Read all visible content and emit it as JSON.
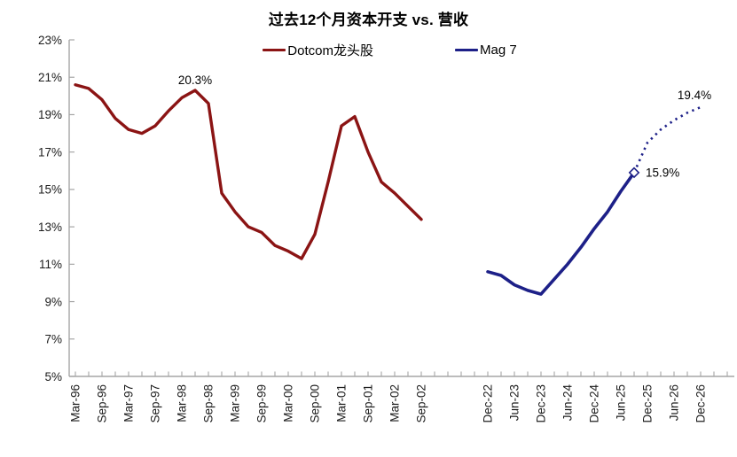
{
  "title": "过去12个月资本开支 vs. 营收",
  "legend": {
    "items": [
      {
        "label": "Dotcom龙头股",
        "color": "#8B1414"
      },
      {
        "label": "Mag 7",
        "color": "#1D2088"
      }
    ]
  },
  "chart_data": {
    "type": "line",
    "title": "过去12个月资本开支 vs. 营收",
    "y_axis": {
      "min": 5,
      "max": 23,
      "step": 2,
      "unit": "%",
      "tick_labels": [
        "5%",
        "7%",
        "9%",
        "11%",
        "13%",
        "15%",
        "17%",
        "19%",
        "21%",
        "23%"
      ]
    },
    "x_axis": {
      "left_tick_labels": [
        "Mar-96",
        "Sep-96",
        "Mar-97",
        "Sep-97",
        "Mar-98",
        "Sep-98",
        "Mar-99",
        "Sep-99",
        "Mar-00",
        "Sep-00",
        "Mar-01",
        "Sep-01",
        "Mar-02",
        "Sep-02"
      ],
      "right_tick_labels": [
        "Dec-22",
        "Jun-23",
        "Dec-23",
        "Jun-24",
        "Dec-24",
        "Jun-25",
        "Dec-25",
        "Jun-26",
        "Dec-26"
      ],
      "minor_tick_interval": "quarter",
      "label_interval": "6 months",
      "label_rotation_deg": -90
    },
    "series": [
      {
        "name": "Dotcom龙头股",
        "color": "#8B1414",
        "style": "solid",
        "start": "Mar-96",
        "frequency": "quarterly",
        "values": [
          20.6,
          20.4,
          19.8,
          18.8,
          18.2,
          18.0,
          18.4,
          19.2,
          19.9,
          20.3,
          19.6,
          14.8,
          13.8,
          13.0,
          12.7,
          12.0,
          11.7,
          11.3,
          12.6,
          15.4,
          18.4,
          18.9,
          17.0,
          15.4,
          14.8,
          14.1,
          13.4
        ],
        "annotation": {
          "label": "20.3%",
          "at": "Jun-98",
          "value": 20.3,
          "x_index": 9
        }
      },
      {
        "name": "Mag 7",
        "color": "#1D2088",
        "style": "solid-then-dotted-forecast",
        "start": "Dec-22",
        "frequency": "quarterly",
        "actual_values": [
          10.6,
          10.4,
          9.9,
          9.6,
          9.4,
          10.2,
          11.0,
          11.9,
          12.9,
          13.8,
          14.9,
          15.9
        ],
        "forecast_values": [
          15.9,
          17.5,
          18.2,
          18.7,
          19.1,
          19.4
        ],
        "forecast_start": "Sep-25",
        "marker": {
          "shape": "diamond",
          "fill": "#ffffff",
          "at": "Sep-25",
          "value": 15.9,
          "x_index": 11
        },
        "annotations": [
          {
            "label": "15.9%",
            "at": "Sep-25",
            "value": 15.9,
            "x_index": 11,
            "placement": "right"
          },
          {
            "label": "19.4%",
            "at": "Dec-26",
            "value": 19.4,
            "x_index": 16,
            "placement": "above"
          }
        ]
      }
    ],
    "grid": "off",
    "legend_position": "top-center",
    "axis_color": "#A6A6A6",
    "text_color": "#1c1c1c"
  }
}
